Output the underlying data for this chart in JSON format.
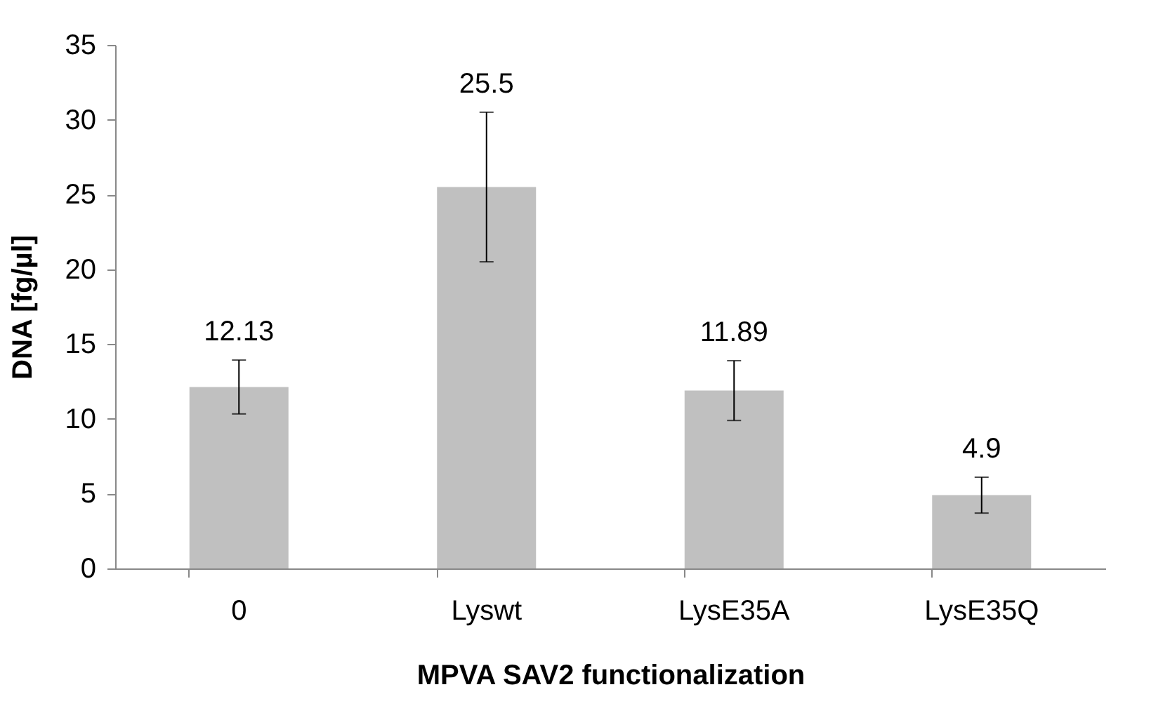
{
  "chart_data": {
    "type": "bar",
    "xlabel": "MPVA SAV2 functionalization",
    "ylabel": "DNA  [fg/µl]",
    "categories": [
      "0",
      "Lyswt",
      "LysE35A",
      "LysE35Q"
    ],
    "values": [
      12.13,
      25.5,
      11.89,
      4.9
    ],
    "errors": [
      1.8,
      5,
      2,
      1.2
    ],
    "color": "#c0c0c0",
    "data_labels": true,
    "ylim": [
      0,
      35
    ],
    "yticks": [
      0,
      5,
      10,
      15,
      20,
      25,
      30,
      35
    ],
    "grid": false
  }
}
